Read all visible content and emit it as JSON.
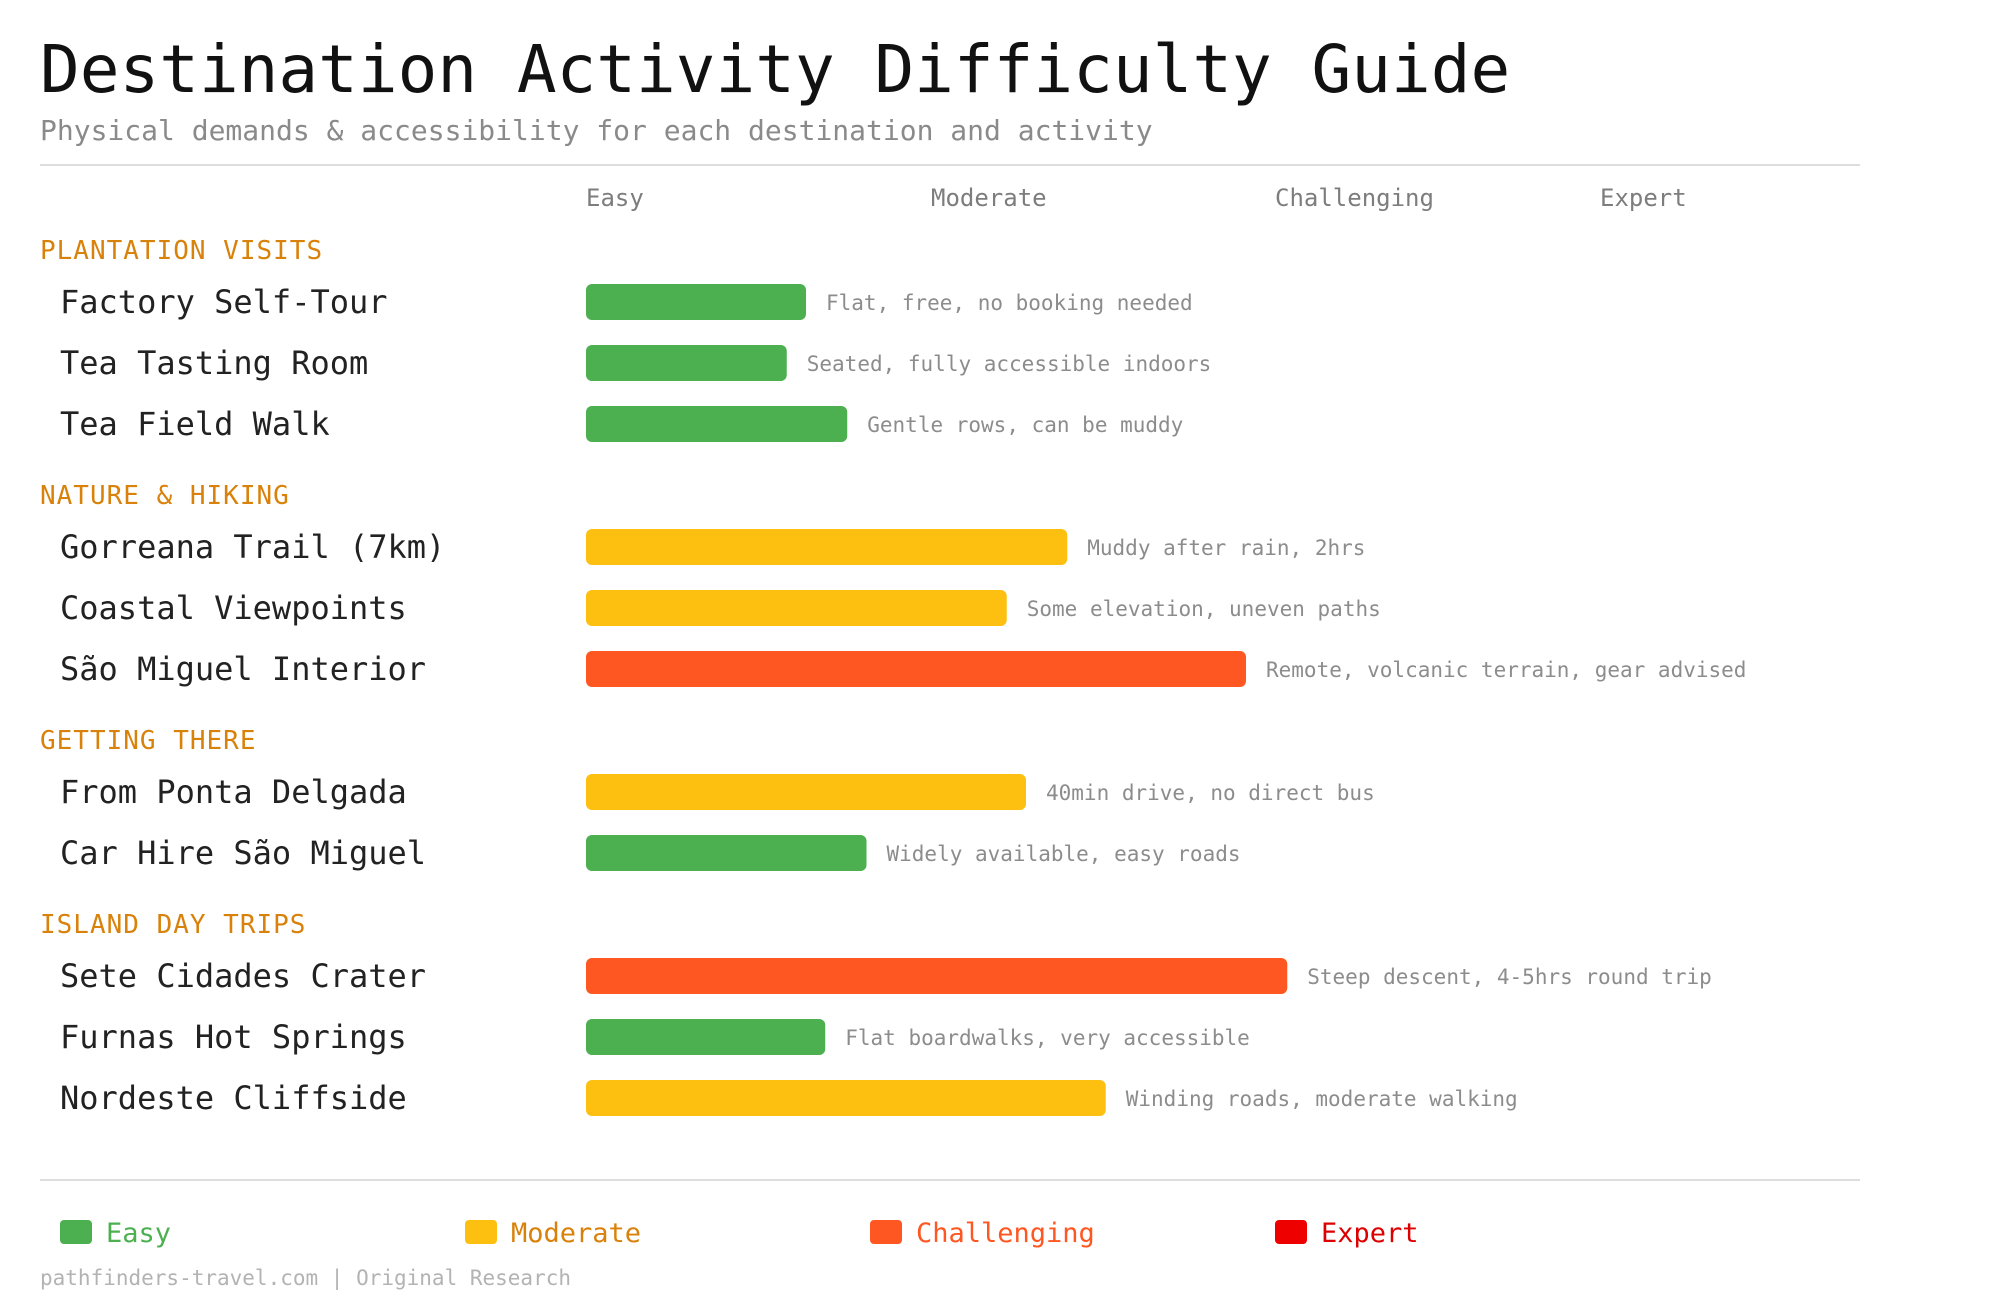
{
  "title": "Destination Activity Difficulty Guide",
  "subtitle": "Physical demands & accessibility for each destination and activity",
  "colors": {
    "Easy": "#4caf50",
    "Moderate": "#fdc010",
    "Challenging": "#ff5722",
    "Expert": "#ee0000",
    "group_label": "#d9820b",
    "divider": "#dddddd"
  },
  "chart_data": {
    "type": "bar",
    "orientation": "horizontal",
    "value_unit": "difficulty score on a 0-4 scale (Easy ~1, Moderate ~2, Challenging ~3, Expert ~4), estimated from bar length",
    "scale_labels": [
      "Easy",
      "Moderate",
      "Challenging",
      "Expert"
    ],
    "xlim": [
      0,
      4
    ],
    "grid": false,
    "legend": "bottom",
    "groups": [
      {
        "name": "PLANTATION VISITS",
        "items": [
          {
            "label": "Factory Self-Tour",
            "value": 0.8,
            "level": "Easy",
            "note": "Flat, free, no booking needed"
          },
          {
            "label": "Tea Tasting Room",
            "value": 0.73,
            "level": "Easy",
            "note": "Seated, fully accessible indoors"
          },
          {
            "label": "Tea Field Walk",
            "value": 0.95,
            "level": "Easy",
            "note": "Gentle rows, can be muddy"
          }
        ]
      },
      {
        "name": "NATURE & HIKING",
        "items": [
          {
            "label": "Gorreana Trail (7km)",
            "value": 1.75,
            "level": "Moderate",
            "note": "Muddy after rain, 2hrs"
          },
          {
            "label": "Coastal Viewpoints",
            "value": 1.53,
            "level": "Moderate",
            "note": "Some elevation, uneven paths"
          },
          {
            "label": "São Miguel Interior",
            "value": 2.4,
            "level": "Challenging",
            "note": "Remote, volcanic terrain, gear advised"
          }
        ]
      },
      {
        "name": "GETTING THERE",
        "items": [
          {
            "label": "From Ponta Delgada",
            "value": 1.6,
            "level": "Moderate",
            "note": "40min drive, no direct bus"
          },
          {
            "label": "Car Hire São Miguel",
            "value": 1.02,
            "level": "Easy",
            "note": "Widely available, easy roads"
          }
        ]
      },
      {
        "name": "ISLAND DAY TRIPS",
        "items": [
          {
            "label": "Sete Cidades Crater",
            "value": 2.55,
            "level": "Challenging",
            "note": "Steep descent, 4-5hrs round trip"
          },
          {
            "label": "Furnas Hot Springs",
            "value": 0.87,
            "level": "Easy",
            "note": "Flat boardwalks, very accessible"
          },
          {
            "label": "Nordeste Cliffside",
            "value": 1.89,
            "level": "Moderate",
            "note": "Winding roads, moderate walking"
          }
        ]
      }
    ]
  },
  "legend": [
    {
      "label": "Easy",
      "color": "#4caf50",
      "text_color": "#4caf50"
    },
    {
      "label": "Moderate",
      "color": "#fdc010",
      "text_color": "#d9820b"
    },
    {
      "label": "Challenging",
      "color": "#ff5722",
      "text_color": "#ff5722"
    },
    {
      "label": "Expert",
      "color": "#ee0000",
      "text_color": "#dd0000"
    }
  ],
  "footer": "pathfinders-travel.com | Original Research"
}
